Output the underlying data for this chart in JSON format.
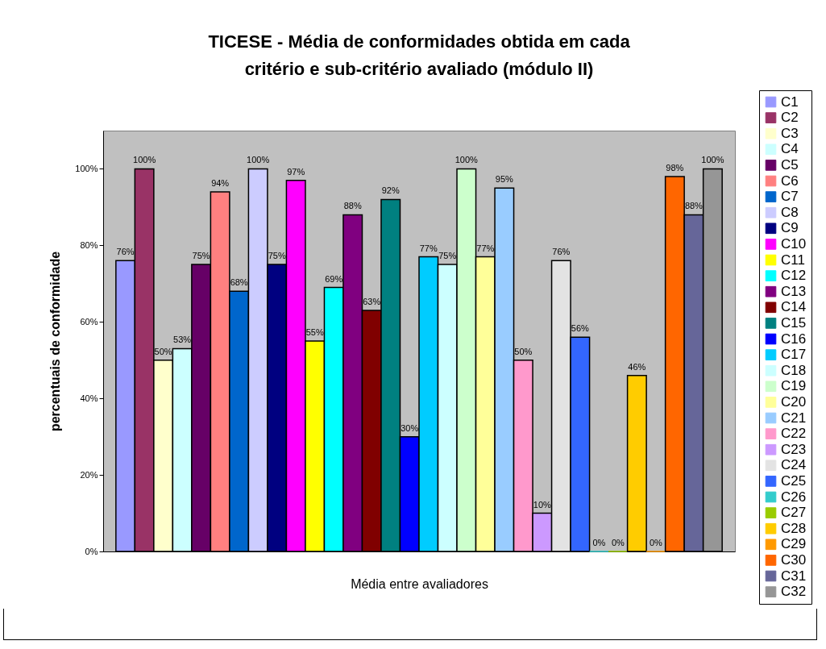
{
  "chart_data": {
    "type": "bar",
    "title": "TICESE - Média de conformidades obtida em cada critério e sub-critério avaliado (módulo II)",
    "xlabel": "Média entre avaliadores",
    "ylabel": "percentuais de conformidade",
    "categories": [
      null
    ],
    "ylim": [
      0,
      110
    ],
    "yticks": [
      {
        "value": 0,
        "label": "0%"
      },
      {
        "value": 20,
        "label": "20%"
      },
      {
        "value": 40,
        "label": "40%"
      },
      {
        "value": 60,
        "label": "60%"
      },
      {
        "value": 80,
        "label": "80%"
      },
      {
        "value": 100,
        "label": "100%"
      }
    ],
    "grid": false,
    "legend": "right",
    "series": [
      {
        "name": "C1",
        "color": "#9999ff",
        "values": [
          76
        ],
        "value_labels": [
          "76%"
        ]
      },
      {
        "name": "C2",
        "color": "#993366",
        "values": [
          100
        ],
        "value_labels": [
          "100%"
        ]
      },
      {
        "name": "C3",
        "color": "#ffffcc",
        "values": [
          50
        ],
        "value_labels": [
          "50%"
        ]
      },
      {
        "name": "C4",
        "color": "#ccffff",
        "values": [
          53
        ],
        "value_labels": [
          "53%"
        ]
      },
      {
        "name": "C5",
        "color": "#660066",
        "values": [
          75
        ],
        "value_labels": [
          "75%"
        ]
      },
      {
        "name": "C6",
        "color": "#ff8080",
        "values": [
          94
        ],
        "value_labels": [
          "94%"
        ]
      },
      {
        "name": "C7",
        "color": "#0066cc",
        "values": [
          68
        ],
        "value_labels": [
          "68%"
        ]
      },
      {
        "name": "C8",
        "color": "#ccccff",
        "values": [
          100
        ],
        "value_labels": [
          "100%"
        ]
      },
      {
        "name": "C9",
        "color": "#000080",
        "values": [
          75
        ],
        "value_labels": [
          "75%"
        ]
      },
      {
        "name": "C10",
        "color": "#ff00ff",
        "values": [
          97
        ],
        "value_labels": [
          "97%"
        ]
      },
      {
        "name": "C11",
        "color": "#ffff00",
        "values": [
          55
        ],
        "value_labels": [
          "55%"
        ]
      },
      {
        "name": "C12",
        "color": "#00ffff",
        "values": [
          69
        ],
        "value_labels": [
          "69%"
        ]
      },
      {
        "name": "C13",
        "color": "#800080",
        "values": [
          88
        ],
        "value_labels": [
          "88%"
        ]
      },
      {
        "name": "C14",
        "color": "#800000",
        "values": [
          63
        ],
        "value_labels": [
          "63%"
        ]
      },
      {
        "name": "C15",
        "color": "#008080",
        "values": [
          92
        ],
        "value_labels": [
          "92%"
        ]
      },
      {
        "name": "C16",
        "color": "#0000ff",
        "values": [
          30
        ],
        "value_labels": [
          "30%"
        ]
      },
      {
        "name": "C17",
        "color": "#00ccff",
        "values": [
          77
        ],
        "value_labels": [
          "77%"
        ]
      },
      {
        "name": "C18",
        "color": "#ccffff",
        "values": [
          75
        ],
        "value_labels": [
          "75%"
        ]
      },
      {
        "name": "C19",
        "color": "#ccffcc",
        "values": [
          100
        ],
        "value_labels": [
          "100%"
        ]
      },
      {
        "name": "C20",
        "color": "#ffff99",
        "values": [
          77
        ],
        "value_labels": [
          "77%"
        ]
      },
      {
        "name": "C21",
        "color": "#99ccff",
        "values": [
          95
        ],
        "value_labels": [
          "95%"
        ]
      },
      {
        "name": "C22",
        "color": "#ff99cc",
        "values": [
          50
        ],
        "value_labels": [
          "50%"
        ]
      },
      {
        "name": "C23",
        "color": "#cc99ff",
        "values": [
          10
        ],
        "value_labels": [
          "10%"
        ]
      },
      {
        "name": "C24",
        "color": "#e3e3e3",
        "values": [
          76
        ],
        "value_labels": [
          "76%"
        ]
      },
      {
        "name": "C25",
        "color": "#3366ff",
        "values": [
          56
        ],
        "value_labels": [
          "56%"
        ]
      },
      {
        "name": "C26",
        "color": "#33cccc",
        "values": [
          0
        ],
        "value_labels": [
          "0%"
        ]
      },
      {
        "name": "C27",
        "color": "#99cc00",
        "values": [
          0
        ],
        "value_labels": [
          "0%"
        ]
      },
      {
        "name": "C28",
        "color": "#ffcc00",
        "values": [
          46
        ],
        "value_labels": [
          "46%"
        ]
      },
      {
        "name": "C29",
        "color": "#ff9900",
        "values": [
          0
        ],
        "value_labels": [
          "0%"
        ]
      },
      {
        "name": "C30",
        "color": "#ff6600",
        "values": [
          98
        ],
        "value_labels": [
          "98%"
        ]
      },
      {
        "name": "C31",
        "color": "#666699",
        "values": [
          88
        ],
        "value_labels": [
          "88%"
        ]
      },
      {
        "name": "C32",
        "color": "#969696",
        "values": [
          100
        ],
        "value_labels": [
          "100%"
        ]
      }
    ]
  }
}
